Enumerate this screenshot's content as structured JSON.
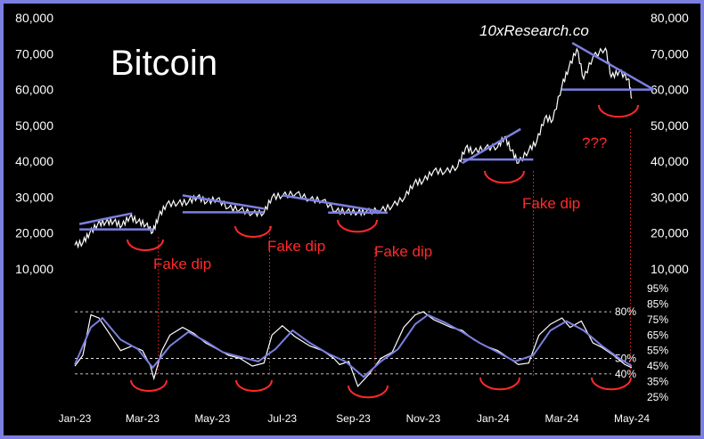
{
  "chart_data": [
    {
      "type": "line",
      "title": "Bitcoin",
      "brand": "10xResearch.co",
      "ylim": [
        10000,
        80000
      ],
      "y_ticks": [
        "80,000",
        "70,000",
        "60,000",
        "50,000",
        "40,000",
        "30,000",
        "20,000",
        "10,000"
      ],
      "y_tick_values": [
        80000,
        70000,
        60000,
        50000,
        40000,
        30000,
        20000,
        10000
      ],
      "x_ticks": [
        "Jan-23",
        "Mar-23",
        "May-23",
        "Jul-23",
        "Sep-23",
        "Nov-23",
        "Jan-24",
        "Mar-24",
        "May-24"
      ],
      "grid": false,
      "series": [
        {
          "color": "#ffffff",
          "x": [
            "2023-01-01",
            "2023-01-08",
            "2023-01-14",
            "2023-01-21",
            "2023-01-28",
            "2023-02-04",
            "2023-02-11",
            "2023-02-18",
            "2023-02-25",
            "2023-03-04",
            "2023-03-10",
            "2023-03-15",
            "2023-03-22",
            "2023-04-01",
            "2023-04-10",
            "2023-04-18",
            "2023-04-26",
            "2023-05-05",
            "2023-05-15",
            "2023-05-25",
            "2023-06-05",
            "2023-06-15",
            "2023-06-22",
            "2023-07-01",
            "2023-07-13",
            "2023-07-25",
            "2023-08-05",
            "2023-08-17",
            "2023-08-26",
            "2023-09-05",
            "2023-09-12",
            "2023-09-25",
            "2023-10-05",
            "2023-10-16",
            "2023-10-24",
            "2023-11-01",
            "2023-11-10",
            "2023-11-20",
            "2023-12-01",
            "2023-12-08",
            "2023-12-15",
            "2023-12-25",
            "2024-01-05",
            "2024-01-11",
            "2024-01-17",
            "2024-01-23",
            "2024-02-01",
            "2024-02-08",
            "2024-02-15",
            "2024-02-22",
            "2024-03-01",
            "2024-03-07",
            "2024-03-14",
            "2024-03-20",
            "2024-03-28",
            "2024-04-08",
            "2024-04-13",
            "2024-04-20",
            "2024-04-28",
            "2024-05-01"
          ],
          "y": [
            16600,
            17300,
            20000,
            22500,
            23000,
            23200,
            22000,
            24500,
            23200,
            22300,
            20200,
            24500,
            28000,
            28300,
            28600,
            30100,
            28600,
            29500,
            27000,
            26500,
            25400,
            25600,
            30000,
            30400,
            31000,
            29300,
            29100,
            26100,
            26000,
            25700,
            25900,
            26300,
            27500,
            30000,
            33900,
            34500,
            37300,
            37000,
            38500,
            43800,
            42600,
            43700,
            44000,
            46800,
            43000,
            39500,
            43000,
            45500,
            52000,
            51500,
            61000,
            66000,
            71300,
            63000,
            69000,
            71500,
            63500,
            65000,
            63000,
            57500
          ]
        }
      ],
      "annotations": [
        "Fake dip",
        "Fake dip",
        "Fake dip",
        "Fake dip",
        "???"
      ]
    },
    {
      "type": "line",
      "ylim": [
        25,
        95
      ],
      "y_ticks": [
        "95%",
        "85%",
        "75%",
        "65%",
        "55%",
        "45%",
        "35%",
        "25%"
      ],
      "y_tick_values": [
        95,
        85,
        75,
        65,
        55,
        45,
        35,
        25
      ],
      "reference_lines": [
        {
          "value": 80,
          "label": "80%"
        },
        {
          "value": 50,
          "label": "50%"
        },
        {
          "value": 40,
          "label": "40%"
        }
      ],
      "series": [
        {
          "color": "#ffffff",
          "x": [
            "2023-01-01",
            "2023-01-08",
            "2023-01-15",
            "2023-01-22",
            "2023-02-01",
            "2023-02-10",
            "2023-02-20",
            "2023-03-01",
            "2023-03-08",
            "2023-03-11",
            "2023-03-18",
            "2023-03-25",
            "2023-04-05",
            "2023-04-15",
            "2023-04-25",
            "2023-05-05",
            "2023-05-15",
            "2023-05-25",
            "2023-06-05",
            "2023-06-15",
            "2023-06-22",
            "2023-07-01",
            "2023-07-12",
            "2023-07-25",
            "2023-08-05",
            "2023-08-15",
            "2023-08-20",
            "2023-08-28",
            "2023-09-05",
            "2023-09-15",
            "2023-09-25",
            "2023-10-05",
            "2023-10-15",
            "2023-10-25",
            "2023-11-01",
            "2023-11-10",
            "2023-11-25",
            "2023-12-05",
            "2023-12-15",
            "2023-12-25",
            "2024-01-05",
            "2024-01-15",
            "2024-01-23",
            "2024-02-01",
            "2024-02-10",
            "2024-02-20",
            "2024-03-01",
            "2024-03-08",
            "2024-03-18",
            "2024-03-28",
            "2024-04-05",
            "2024-04-15",
            "2024-04-25",
            "2024-05-01"
          ],
          "y": [
            45,
            52,
            78,
            76,
            65,
            55,
            58,
            55,
            45,
            37,
            55,
            65,
            70,
            66,
            60,
            56,
            52,
            50,
            45,
            47,
            65,
            71,
            64,
            58,
            55,
            50,
            46,
            48,
            32,
            40,
            50,
            54,
            70,
            78,
            80,
            75,
            70,
            68,
            62,
            58,
            55,
            50,
            46,
            47,
            65,
            72,
            76,
            70,
            74,
            60,
            57,
            52,
            46,
            44
          ]
        },
        {
          "color": "#7b7fe0",
          "x": [
            "2023-01-01",
            "2023-01-15",
            "2023-01-25",
            "2023-02-10",
            "2023-02-25",
            "2023-03-10",
            "2023-03-25",
            "2023-04-10",
            "2023-04-25",
            "2023-05-10",
            "2023-05-25",
            "2023-06-10",
            "2023-06-25",
            "2023-07-10",
            "2023-07-25",
            "2023-08-10",
            "2023-08-25",
            "2023-09-10",
            "2023-09-25",
            "2023-10-10",
            "2023-10-25",
            "2023-11-05",
            "2023-11-20",
            "2023-12-05",
            "2023-12-20",
            "2024-01-05",
            "2024-01-20",
            "2024-02-05",
            "2024-02-20",
            "2024-03-05",
            "2024-03-20",
            "2024-04-05",
            "2024-04-20",
            "2024-05-01"
          ],
          "y": [
            46,
            70,
            76,
            62,
            56,
            44,
            58,
            67,
            61,
            54,
            51,
            48,
            56,
            68,
            60,
            53,
            48,
            38,
            48,
            56,
            72,
            78,
            73,
            67,
            60,
            54,
            48,
            52,
            68,
            74,
            68,
            58,
            50,
            45
          ]
        }
      ]
    }
  ]
}
